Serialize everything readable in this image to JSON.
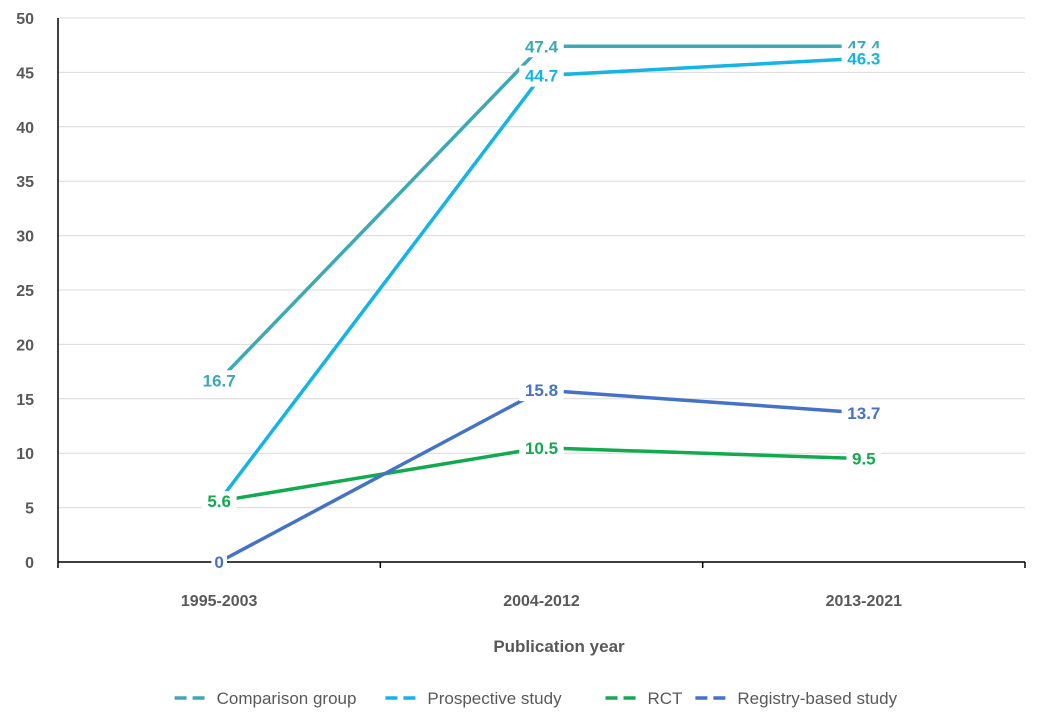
{
  "chart_data": {
    "type": "line",
    "title": "",
    "xlabel": "Publication year",
    "ylabel": "",
    "categories": [
      "1995-2003",
      "2004-2012",
      "2013-2021"
    ],
    "ylim": [
      0,
      50
    ],
    "yticks": [
      0,
      5,
      10,
      15,
      20,
      25,
      30,
      35,
      40,
      45,
      50
    ],
    "grid": true,
    "legend_position": "bottom",
    "series": [
      {
        "name": "Comparison group",
        "values": [
          16.7,
          47.4,
          47.4
        ],
        "labels": [
          "16.7",
          "47.4",
          "47.4"
        ],
        "color": "#3DA9B4"
      },
      {
        "name": "Prospective study",
        "values": [
          5.6,
          44.7,
          46.3
        ],
        "labels": [
          "",
          "44.7",
          "46.3"
        ],
        "color": "#14B4E6"
      },
      {
        "name": "RCT",
        "values": [
          5.6,
          10.5,
          9.5
        ],
        "labels": [
          "5.6",
          "10.5",
          "9.5"
        ],
        "color": "#12AA4E"
      },
      {
        "name": "Registry-based study",
        "values": [
          0,
          15.8,
          13.7
        ],
        "labels": [
          "0",
          "15.8",
          "13.7"
        ],
        "color": "#4472C4"
      }
    ]
  }
}
